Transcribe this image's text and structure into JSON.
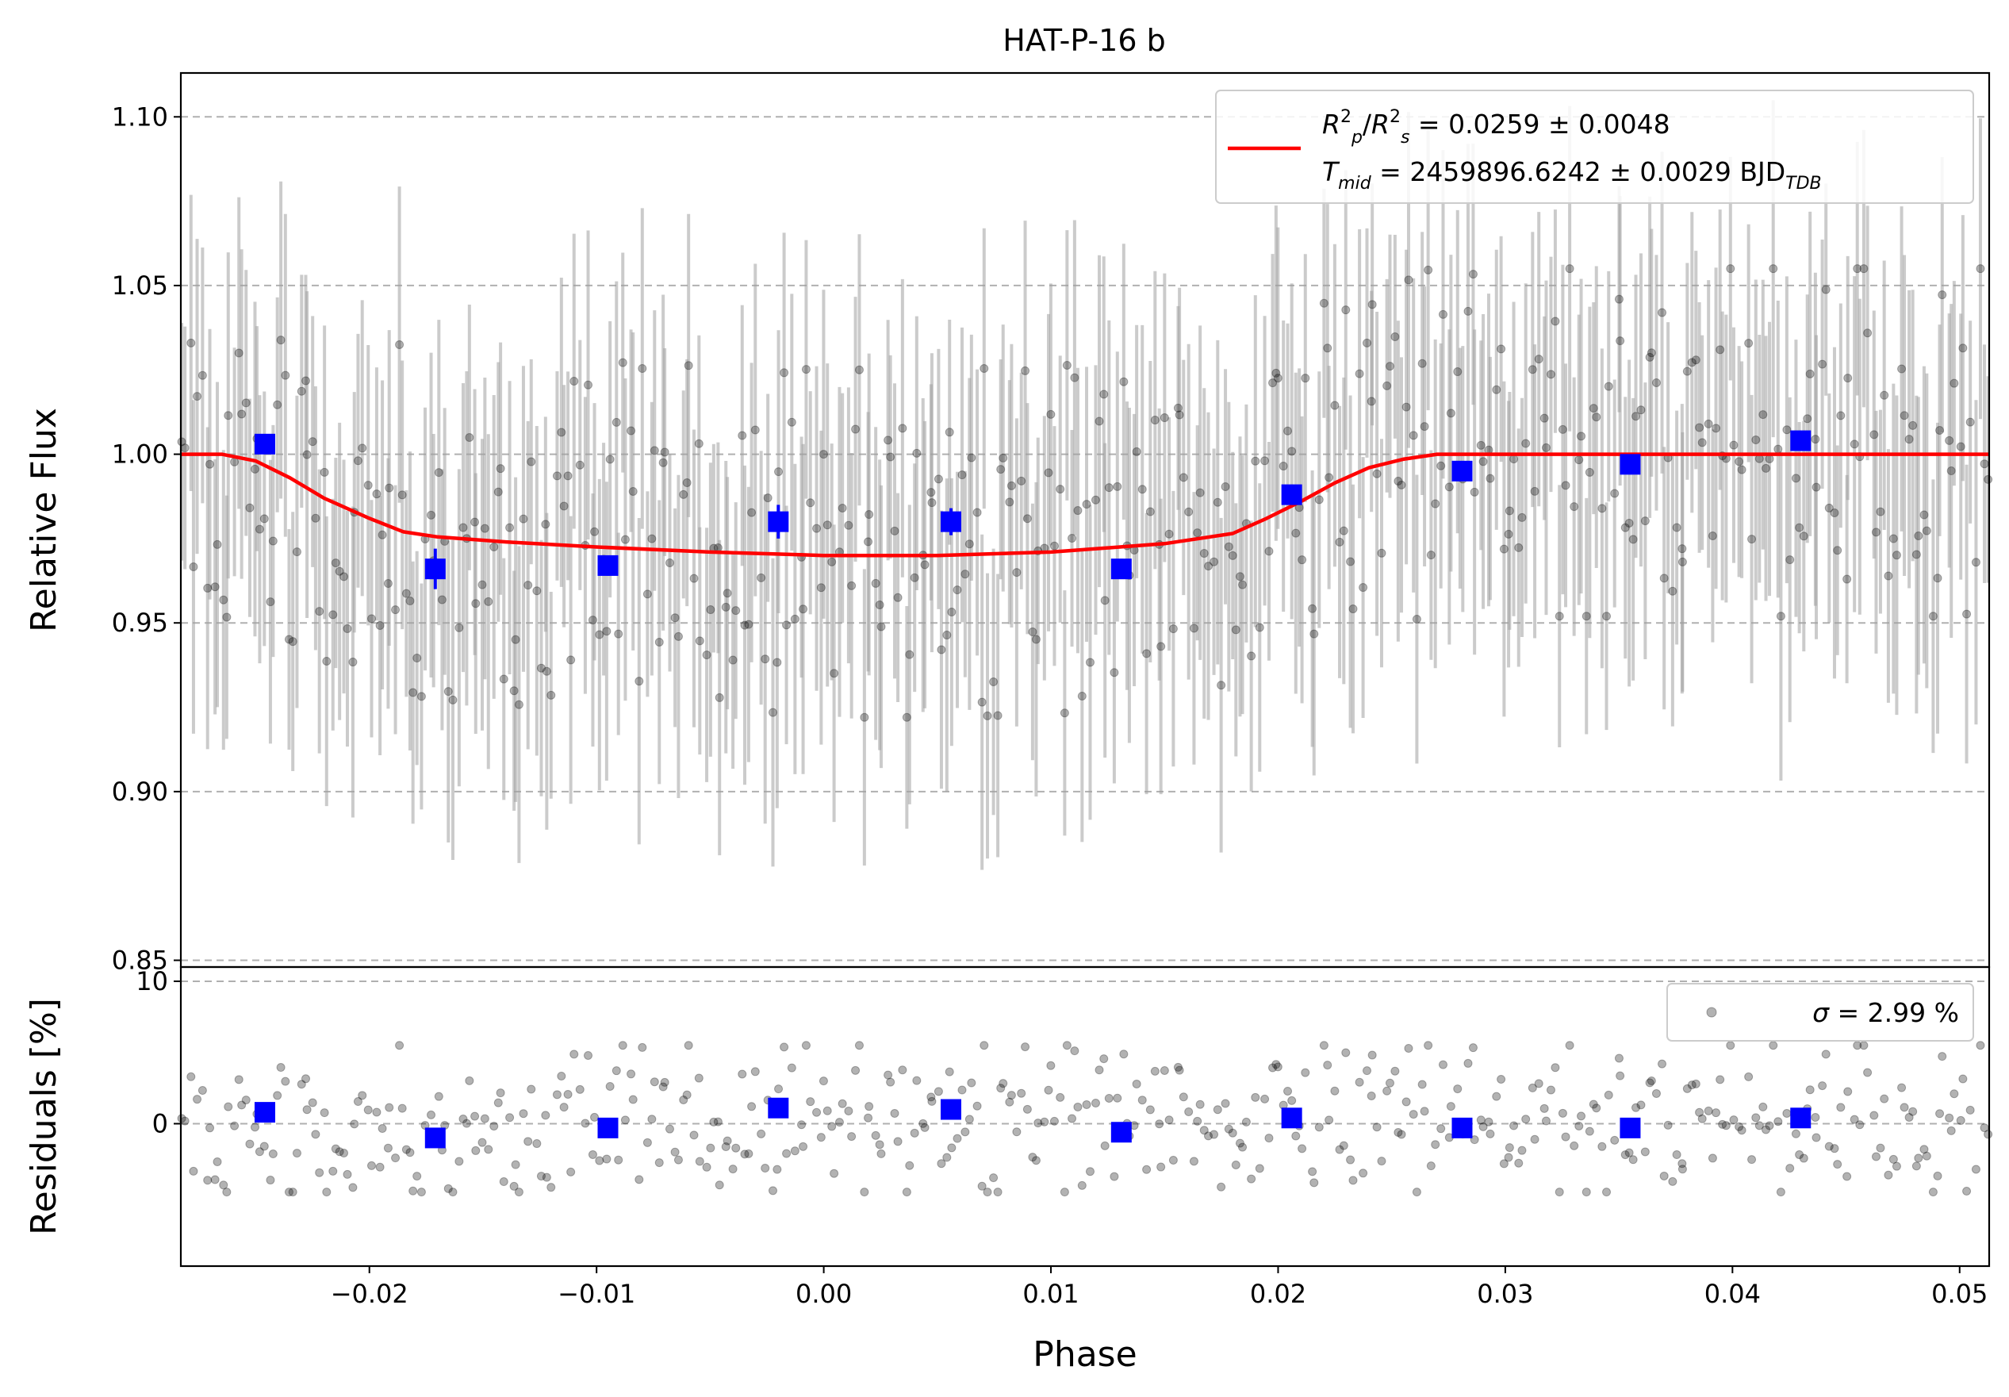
{
  "title": "HAT-P-16 b",
  "colors": {
    "model": "#ff0000",
    "binned": "#0000ff",
    "raw": "#000000",
    "raw_error": "#a0a0a0",
    "grid": "#b0b0b0"
  },
  "chart_data": [
    {
      "panel": "light-curve",
      "type": "scatter",
      "title": "HAT-P-16 b",
      "xlabel": "",
      "ylabel": "Relative Flux",
      "xlim": [
        -0.0283,
        0.0513
      ],
      "ylim": [
        0.848,
        1.113
      ],
      "yticks": [
        0.85,
        0.9,
        0.95,
        1.0,
        1.05,
        1.1
      ],
      "ytick_labels": [
        "0.85",
        "0.90",
        "0.95",
        "1.00",
        "1.05",
        "1.10"
      ],
      "grid": "y-dashed",
      "legend": {
        "placement": "upper-right",
        "entries": [
          {
            "label_line1": "R_p^2/R_s^2 = 0.0259 ± 0.0048",
            "label_line2": "T_mid = 2459896.6242 ± 0.0029 BJD_TDB"
          }
        ],
        "rp_symbol": "R",
        "rp_sub": "p",
        "rp_sup": "2",
        "rs_symbol": "R",
        "rs_sub": "s",
        "rs_sup": "2",
        "rp_value": " = 0.0259 ± 0.0048",
        "tmid_symbol": "T",
        "tmid_sub": "mid",
        "tmid_value": " = 2459896.6242 ± 0.0029 BJD",
        "tmid_unit_sub": "TDB"
      },
      "series": [
        {
          "name": "model",
          "kind": "line",
          "points": [
            [
              -0.0283,
              1.0
            ],
            [
              -0.0265,
              1.0
            ],
            [
              -0.025,
              0.998
            ],
            [
              -0.0235,
              0.993
            ],
            [
              -0.022,
              0.987
            ],
            [
              -0.02,
              0.981
            ],
            [
              -0.0185,
              0.977
            ],
            [
              -0.017,
              0.9755
            ],
            [
              -0.014,
              0.974
            ],
            [
              -0.01,
              0.9725
            ],
            [
              -0.005,
              0.971
            ],
            [
              0.0,
              0.97
            ],
            [
              0.005,
              0.97
            ],
            [
              0.01,
              0.971
            ],
            [
              0.015,
              0.9735
            ],
            [
              0.018,
              0.9765
            ],
            [
              0.0195,
              0.981
            ],
            [
              0.021,
              0.986
            ],
            [
              0.0225,
              0.9915
            ],
            [
              0.024,
              0.996
            ],
            [
              0.0255,
              0.9985
            ],
            [
              0.027,
              1.0
            ],
            [
              0.0513,
              1.0
            ]
          ]
        },
        {
          "name": "binned",
          "kind": "marker",
          "points": [
            [
              -0.0246,
              1.003
            ],
            [
              -0.0171,
              0.966
            ],
            [
              -0.0095,
              0.967
            ],
            [
              -0.002,
              0.98
            ],
            [
              0.0056,
              0.98
            ],
            [
              0.0131,
              0.966
            ],
            [
              0.0206,
              0.988
            ],
            [
              0.0281,
              0.995
            ],
            [
              0.0355,
              0.997
            ],
            [
              0.043,
              1.004
            ]
          ],
          "errors": [
            0.003,
            0.006,
            0.003,
            0.005,
            0.004,
            0.003,
            0.003,
            0.003,
            0.003,
            0.003
          ]
        }
      ],
      "raw_model": {
        "n": 460,
        "x_range": [
          -0.0283,
          0.0513
        ],
        "scatter_sigma": 0.0299,
        "err_range": [
          0.03,
          0.05
        ],
        "seed": 16
      }
    },
    {
      "panel": "residuals",
      "type": "scatter",
      "xlabel": "Phase",
      "ylabel": "Residuals [%]",
      "xlim": [
        -0.0283,
        0.0513
      ],
      "ylim": [
        -10,
        11
      ],
      "yticks": [
        0,
        10
      ],
      "ytick_labels": [
        "0",
        "10"
      ],
      "xticks": [
        -0.02,
        -0.01,
        0.0,
        0.01,
        0.02,
        0.03,
        0.04,
        0.05
      ],
      "xtick_labels": [
        "−0.02",
        "−0.01",
        "0.00",
        "0.01",
        "0.02",
        "0.03",
        "0.04",
        "0.05"
      ],
      "grid": "y-dashed",
      "legend": {
        "placement": "upper-right",
        "sigma_symbol": "σ",
        "sigma_value": " = 2.99 %"
      },
      "series": [
        {
          "name": "binned",
          "kind": "marker",
          "points": [
            [
              -0.0246,
              0.8
            ],
            [
              -0.0171,
              -1.0
            ],
            [
              -0.0095,
              -0.3
            ],
            [
              -0.002,
              1.1
            ],
            [
              0.0056,
              1.0
            ],
            [
              0.0131,
              -0.6
            ],
            [
              0.0206,
              0.4
            ],
            [
              0.0281,
              -0.3
            ],
            [
              0.0355,
              -0.3
            ],
            [
              0.043,
              0.4
            ]
          ]
        }
      ]
    }
  ]
}
